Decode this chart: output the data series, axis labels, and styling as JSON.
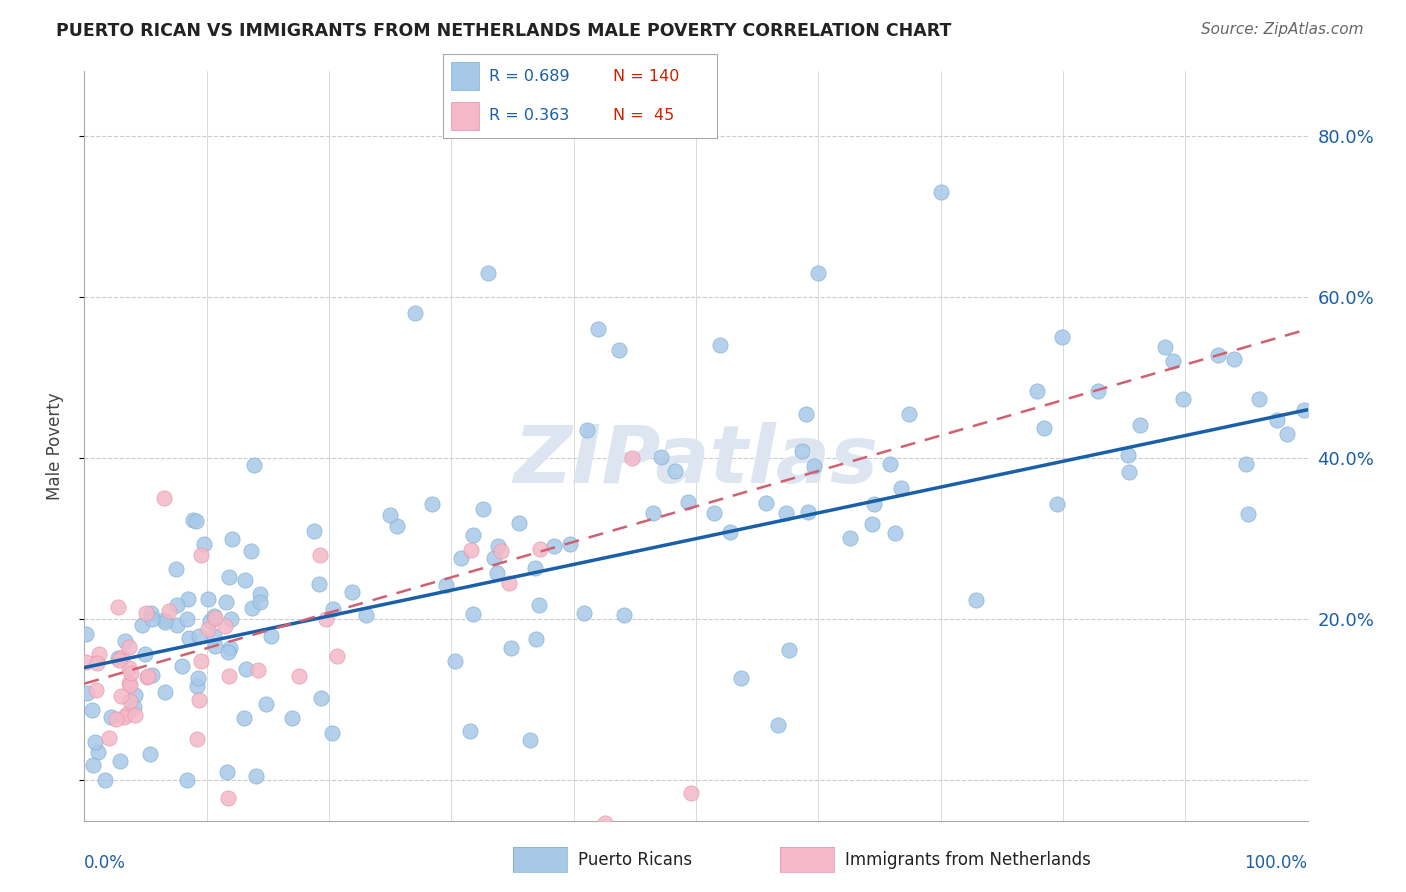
{
  "title": "PUERTO RICAN VS IMMIGRANTS FROM NETHERLANDS MALE POVERTY CORRELATION CHART",
  "source": "Source: ZipAtlas.com",
  "ylabel": "Male Poverty",
  "y_ticks": [
    0.0,
    0.2,
    0.4,
    0.6,
    0.8
  ],
  "y_tick_labels": [
    "",
    "20.0%",
    "40.0%",
    "60.0%",
    "80.0%"
  ],
  "blue_color": "#a8c8e8",
  "blue_edge_color": "#7aaed0",
  "pink_color": "#f4b8c8",
  "pink_edge_color": "#e890a8",
  "blue_line_color": "#1a5fa8",
  "pink_line_color": "#d06070",
  "title_color": "#222222",
  "source_color": "#666666",
  "grid_color": "#cccccc",
  "background_color": "#ffffff",
  "watermark_color": "#dde6f0",
  "legend_r1_color": "#1a5fa8",
  "legend_n1_color": "#cc2200",
  "legend_r2_color": "#1a5fa8",
  "legend_n2_color": "#cc2200",
  "xlim": [
    0.0,
    1.0
  ],
  "ylim": [
    -0.05,
    0.88
  ],
  "blue_line_x0": 0.0,
  "blue_line_x1": 1.0,
  "blue_line_y0": 0.14,
  "blue_line_y1": 0.46,
  "pink_line_x0": 0.0,
  "pink_line_x1": 1.0,
  "pink_line_y0": 0.12,
  "pink_line_y1": 0.56
}
